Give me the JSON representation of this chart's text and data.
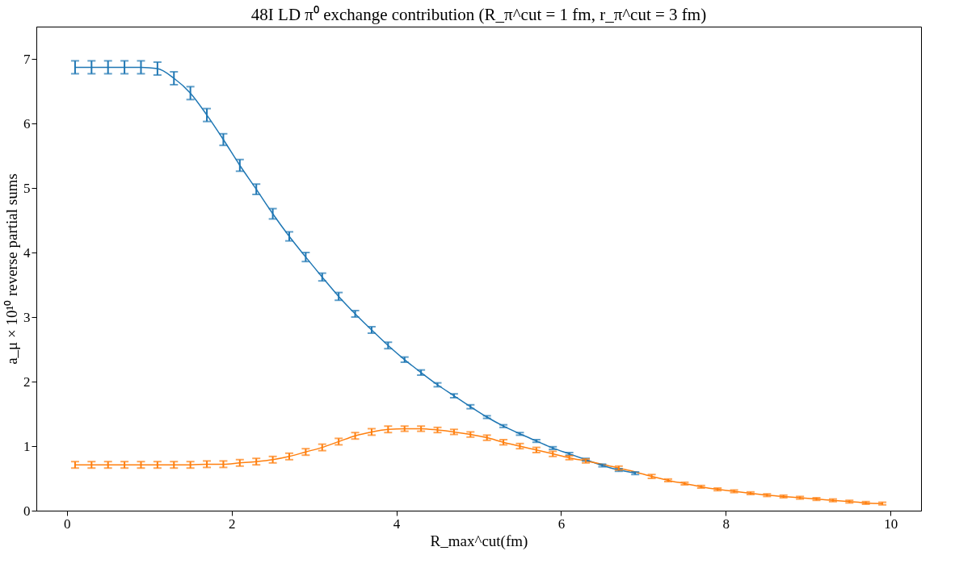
{
  "chart_data": {
    "type": "line",
    "title": "48I LD π⁰ exchange contribution (R_π^cut = 1 fm, r_π^cut = 3 fm)",
    "xlabel": "R_max^cut(fm)",
    "ylabel": "a_μ × 10¹⁰ reverse partial sums",
    "x": [
      0.1,
      0.3,
      0.5,
      0.7,
      0.9,
      1.1,
      1.3,
      1.5,
      1.7,
      1.9,
      2.1,
      2.3,
      2.5,
      2.7,
      2.9,
      3.1,
      3.3,
      3.5,
      3.7,
      3.9,
      4.1,
      4.3,
      4.5,
      4.7,
      4.9,
      5.1,
      5.3,
      5.5,
      5.7,
      5.9,
      6.1,
      6.3,
      6.5,
      6.7,
      6.9,
      7.1,
      7.3,
      7.5,
      7.7,
      7.9,
      8.1,
      8.3,
      8.5,
      8.7,
      8.9,
      9.1,
      9.3,
      9.5,
      9.7,
      9.9
    ],
    "series": [
      {
        "color": "#1f77b4",
        "values": [
          6.87,
          6.87,
          6.87,
          6.87,
          6.87,
          6.85,
          6.7,
          6.47,
          6.13,
          5.75,
          5.35,
          4.98,
          4.6,
          4.25,
          3.93,
          3.62,
          3.32,
          3.05,
          2.8,
          2.56,
          2.34,
          2.14,
          1.95,
          1.78,
          1.61,
          1.45,
          1.31,
          1.19,
          1.08,
          0.97,
          0.88,
          0.79,
          0.7,
          0.63,
          0.58,
          null,
          null,
          null,
          null,
          null,
          null,
          null,
          null,
          null,
          null,
          null,
          null,
          null,
          null,
          null
        ],
        "errors": [
          0.1,
          0.1,
          0.1,
          0.1,
          0.1,
          0.1,
          0.1,
          0.1,
          0.1,
          0.09,
          0.09,
          0.08,
          0.08,
          0.07,
          0.07,
          0.06,
          0.06,
          0.05,
          0.05,
          0.05,
          0.04,
          0.04,
          0.03,
          0.03,
          0.03,
          0.02,
          0.02,
          0.02,
          0.02,
          0.02,
          0.02,
          0.02,
          0.02,
          0.02,
          0.02,
          null,
          null,
          null,
          null,
          null,
          null,
          null,
          null,
          null,
          null,
          null,
          null,
          null,
          null,
          null
        ]
      },
      {
        "color": "#ff7f0e",
        "values": [
          0.71,
          0.71,
          0.71,
          0.71,
          0.71,
          0.71,
          0.71,
          0.71,
          0.72,
          0.72,
          0.74,
          0.76,
          0.79,
          0.84,
          0.91,
          0.98,
          1.07,
          1.16,
          1.22,
          1.26,
          1.27,
          1.27,
          1.25,
          1.22,
          1.18,
          1.13,
          1.06,
          1.0,
          0.94,
          0.88,
          0.82,
          0.77,
          0.72,
          0.66,
          0.6,
          0.53,
          0.47,
          0.42,
          0.37,
          0.33,
          0.3,
          0.27,
          0.24,
          0.22,
          0.2,
          0.18,
          0.16,
          0.14,
          0.12,
          0.11
        ],
        "errors": [
          0.05,
          0.05,
          0.05,
          0.05,
          0.05,
          0.05,
          0.05,
          0.05,
          0.05,
          0.05,
          0.05,
          0.05,
          0.05,
          0.05,
          0.05,
          0.05,
          0.05,
          0.05,
          0.05,
          0.05,
          0.04,
          0.04,
          0.04,
          0.04,
          0.04,
          0.04,
          0.04,
          0.04,
          0.04,
          0.04,
          0.03,
          0.03,
          null,
          0.03,
          null,
          0.03,
          0.02,
          0.02,
          0.02,
          0.02,
          0.02,
          0.02,
          0.02,
          0.02,
          0.02,
          0.02,
          0.02,
          0.02,
          0.02,
          0.02
        ]
      }
    ],
    "xlim": [
      -0.37,
      10.37
    ],
    "ylim": [
      0,
      7.5
    ],
    "xticks": [
      0,
      2,
      4,
      6,
      8,
      10
    ],
    "yticks": [
      0,
      1,
      2,
      3,
      4,
      5,
      6,
      7
    ],
    "grid": false,
    "legend": false
  }
}
